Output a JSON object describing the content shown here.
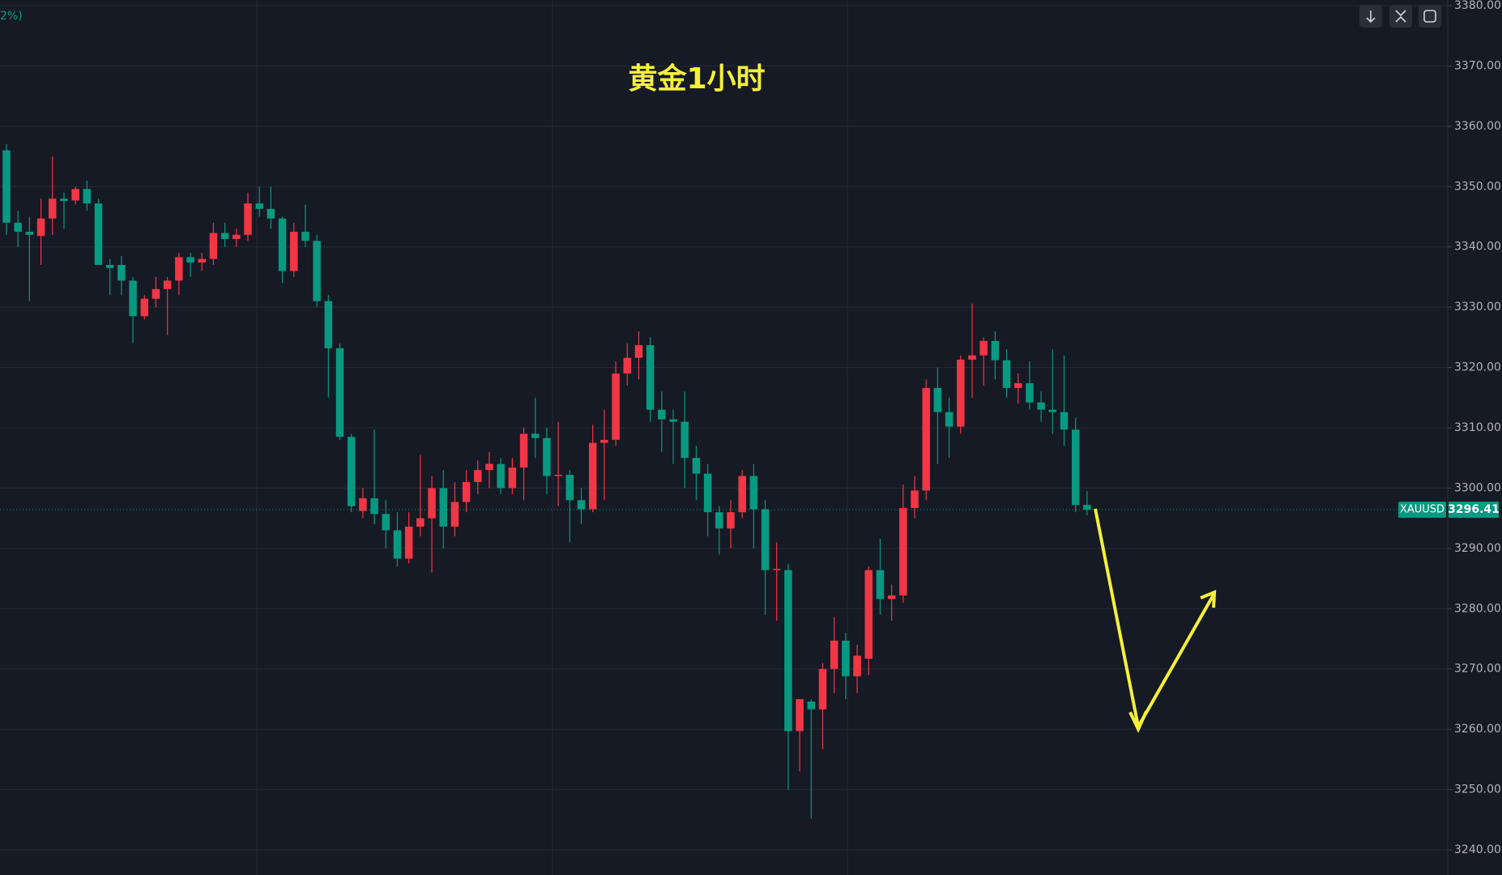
{
  "chart_data": {
    "type": "candlestick",
    "title": "黄金1小时",
    "header_fragment": "2%)",
    "up_color": "#f23645",
    "down_color": "#089981",
    "grid": true,
    "ylim": [
      3240,
      3380
    ],
    "yticks": [
      {
        "value": 3380,
        "label": "3380.00"
      },
      {
        "value": 3370,
        "label": "3370.00"
      },
      {
        "value": 3360,
        "label": "3360.00"
      },
      {
        "value": 3350,
        "label": "3350.00"
      },
      {
        "value": 3340,
        "label": "3340.00"
      },
      {
        "value": 3330,
        "label": "3330.00"
      },
      {
        "value": 3320,
        "label": "3320.00"
      },
      {
        "value": 3310,
        "label": "3310.00"
      },
      {
        "value": 3300,
        "label": "3300.00"
      },
      {
        "value": 3290,
        "label": "3290.00"
      },
      {
        "value": 3280,
        "label": "3280.00"
      },
      {
        "value": 3270,
        "label": "3270.00"
      },
      {
        "value": 3260,
        "label": "3260.00"
      },
      {
        "value": 3250,
        "label": "3250.00"
      },
      {
        "value": 3240,
        "label": "3240.00"
      }
    ],
    "last_price": {
      "symbol": "XAUUSD",
      "value": 3296.41
    },
    "open": [
      3356,
      3344,
      3342.5,
      3341.8,
      3344.7,
      3348,
      3347.7,
      3349.6,
      3347.2,
      3337,
      3337,
      3334.4,
      3328.5,
      3331.4,
      3333,
      3334.4,
      3338.3,
      3337.4,
      3338,
      3342.3,
      3341.3,
      3342,
      3347.2,
      3346.3,
      3344.7,
      3336,
      3342.5,
      3341,
      3331,
      3323.2,
      3308.5,
      3296.2,
      3298.3,
      3295.7,
      3293,
      3288.3,
      3293.6,
      3295,
      3300,
      3293.6,
      3297.7,
      3301,
      3303,
      3304,
      3300,
      3303.4,
      3309,
      3308.3,
      3302,
      3302.2,
      3298,
      3296.5,
      3307.5,
      3308,
      3319,
      3321.6,
      3323.7,
      3313,
      3311.4,
      3311,
      3305,
      3302.4,
      3296,
      3293.3,
      3296,
      3302,
      3296.5,
      3286.4,
      3286.4,
      3259.7,
      3264.6,
      3263.3,
      3270,
      3274.7,
      3268.8,
      3271.7,
      3286.4,
      3281.6,
      3282.2,
      3296.7,
      3299.6,
      3316.6,
      3312.6,
      3310.2,
      3321.3,
      3322,
      3324.4,
      3321.2,
      3316.6,
      3317.4,
      3314.2,
      3313,
      3312.6,
      3309.7,
      3297.2
    ],
    "high": [
      3357,
      3346,
      3345,
      3348,
      3355,
      3349,
      3350,
      3351,
      3348,
      3338,
      3338.5,
      3335,
      3332,
      3335,
      3335,
      3339,
      3339,
      3339,
      3344,
      3344,
      3343,
      3349,
      3350,
      3350,
      3345,
      3344,
      3347,
      3342,
      3332,
      3324,
      3309,
      3300,
      3309.7,
      3298,
      3296,
      3296,
      3305.5,
      3302,
      3303,
      3301,
      3303,
      3304.6,
      3306,
      3305,
      3305,
      3310,
      3315,
      3310,
      3311,
      3303,
      3300,
      3310.5,
      3313,
      3321,
      3324,
      3326,
      3325,
      3316,
      3313,
      3316,
      3307,
      3304,
      3297,
      3298,
      3303,
      3304,
      3298,
      3291,
      3287.4,
      3265,
      3265,
      3271,
      3278.6,
      3276,
      3274,
      3287,
      3291.6,
      3284,
      3300.6,
      3302,
      3318,
      3320,
      3315,
      3322,
      3330.6,
      3325,
      3326,
      3323,
      3319,
      3321,
      3316,
      3323,
      3322,
      3311.7,
      3299.5
    ],
    "low": [
      3342,
      3340,
      3331,
      3337,
      3342,
      3343,
      3347,
      3346,
      3337,
      3332,
      3332,
      3324,
      3328,
      3330,
      3325.4,
      3332,
      3335,
      3336,
      3337,
      3340,
      3340,
      3341,
      3345,
      3343,
      3334,
      3335,
      3340,
      3330,
      3315,
      3308,
      3296,
      3295,
      3294,
      3290,
      3287,
      3287.5,
      3292,
      3286,
      3290,
      3292,
      3296,
      3299,
      3300,
      3299,
      3299,
      3298,
      3305,
      3299,
      3297,
      3291,
      3294,
      3296,
      3298,
      3307,
      3317,
      3318,
      3311,
      3306,
      3304,
      3300,
      3298,
      3292,
      3289,
      3290,
      3295,
      3290,
      3279,
      3278,
      3250,
      3253,
      3245.2,
      3256.7,
      3266,
      3265,
      3266,
      3269,
      3279,
      3278,
      3281,
      3295,
      3298,
      3304,
      3305,
      3309,
      3315,
      3317,
      3318,
      3315,
      3314,
      3313,
      3311,
      3309,
      3307,
      3296,
      3295.5
    ],
    "close": [
      3344,
      3342.5,
      3342,
      3344.7,
      3348,
      3347.6,
      3349.6,
      3347.2,
      3337,
      3336.5,
      3334.4,
      3328.5,
      3331.4,
      3333,
      3334.4,
      3338.3,
      3337.4,
      3338,
      3342.3,
      3341.3,
      3342,
      3347.2,
      3346.3,
      3344.7,
      3336,
      3342.5,
      3341,
      3331,
      3323.2,
      3308.5,
      3297,
      3298.3,
      3295.7,
      3293,
      3288.3,
      3293.6,
      3295,
      3300,
      3293.6,
      3297.7,
      3301,
      3303,
      3304,
      3300,
      3303.4,
      3309,
      3308.3,
      3302,
      3302.2,
      3298,
      3296.5,
      3307.5,
      3308,
      3319,
      3321.6,
      3323.7,
      3313,
      3311.4,
      3311,
      3305,
      3302.4,
      3296,
      3293.3,
      3296,
      3302,
      3296.5,
      3286.4,
      3286.6,
      3259.7,
      3265,
      3263.3,
      3270,
      3274.7,
      3268.8,
      3272.2,
      3286.4,
      3281.6,
      3282.2,
      3296.7,
      3299.6,
      3316.6,
      3312.6,
      3310.2,
      3321.3,
      3322,
      3324.4,
      3321.2,
      3316.6,
      3317.4,
      3314.2,
      3313,
      3312.6,
      3309.7,
      3297.2,
      3296.41
    ]
  }
}
